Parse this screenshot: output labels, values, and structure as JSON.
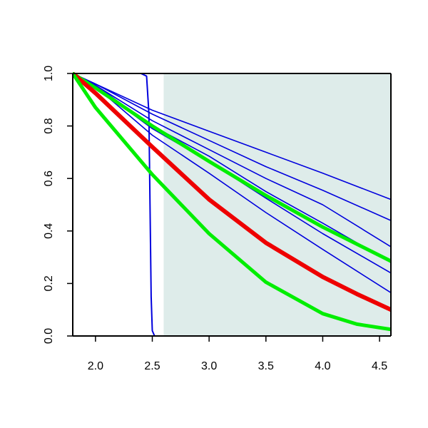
{
  "chart_data": {
    "type": "line",
    "title": "",
    "xlabel": "",
    "ylabel": "",
    "xlim": [
      1.8,
      4.6
    ],
    "ylim": [
      0.0,
      1.0
    ],
    "x_ticks": [
      2.0,
      2.5,
      3.0,
      3.5,
      4.0,
      4.5
    ],
    "x_tick_labels": [
      "2.0",
      "2.5",
      "3.0",
      "3.5",
      "4.0",
      "4.5"
    ],
    "y_ticks": [
      0.0,
      0.2,
      0.4,
      0.6,
      0.8,
      1.0
    ],
    "y_tick_labels": [
      "0.0",
      "0.2",
      "0.4",
      "0.6",
      "0.8",
      "1.0"
    ],
    "grid": false,
    "legend": "none",
    "shaded_region": {
      "x_start": 2.6,
      "x_end": 4.6,
      "color": "#deecea"
    },
    "colors": {
      "blue": "#0000dd",
      "green": "#00ee00",
      "red": "#ee0000",
      "axis": "#000000"
    },
    "series": [
      {
        "color": "#0000dd",
        "width": 1.6,
        "x": [
          1.8,
          2.0,
          2.5,
          3.0,
          3.5,
          4.0,
          4.6
        ],
        "values": [
          1.0,
          0.96,
          0.86,
          0.78,
          0.7,
          0.62,
          0.52
        ]
      },
      {
        "color": "#0000dd",
        "width": 1.6,
        "x": [
          1.8,
          2.0,
          2.5,
          3.0,
          3.5,
          4.0,
          4.6
        ],
        "values": [
          1.0,
          0.96,
          0.845,
          0.745,
          0.645,
          0.555,
          0.44
        ]
      },
      {
        "color": "#0000dd",
        "width": 1.6,
        "x": [
          1.8,
          2.0,
          2.5,
          3.0,
          3.5,
          4.0,
          4.6
        ],
        "values": [
          1.0,
          0.955,
          0.82,
          0.71,
          0.6,
          0.5,
          0.34
        ]
      },
      {
        "color": "#0000dd",
        "width": 1.6,
        "x": [
          1.8,
          2.0,
          2.5,
          3.0,
          3.5,
          4.0,
          4.6
        ],
        "values": [
          1.0,
          0.955,
          0.8,
          0.685,
          0.55,
          0.43,
          0.28
        ]
      },
      {
        "color": "#0000dd",
        "width": 1.6,
        "x": [
          1.8,
          2.0,
          2.5,
          3.0,
          3.5,
          4.0,
          4.6
        ],
        "values": [
          1.0,
          0.95,
          0.79,
          0.665,
          0.525,
          0.39,
          0.24
        ]
      },
      {
        "color": "#0000dd",
        "width": 1.6,
        "x": [
          1.8,
          2.0,
          2.5,
          3.0,
          3.5,
          4.0,
          4.6
        ],
        "values": [
          1.0,
          0.95,
          0.765,
          0.62,
          0.47,
          0.33,
          0.165
        ]
      },
      {
        "color": "#0000dd",
        "width": 2,
        "x": [
          1.8,
          2.0,
          2.4,
          2.45,
          2.47,
          2.48,
          2.49,
          2.5,
          2.52,
          3.0,
          4.6
        ],
        "values": [
          1.0,
          1.0,
          1.0,
          0.99,
          0.85,
          0.5,
          0.15,
          0.02,
          0.0,
          0.0,
          0.0
        ]
      },
      {
        "color": "#00ee00",
        "width": 5,
        "x": [
          1.8,
          2.0,
          2.5,
          3.0,
          3.5,
          4.0,
          4.6
        ],
        "values": [
          1.0,
          0.945,
          0.8,
          0.665,
          0.535,
          0.415,
          0.285
        ]
      },
      {
        "color": "#ee0000",
        "width": 6,
        "x": [
          1.8,
          2.0,
          2.5,
          3.0,
          3.5,
          4.0,
          4.3,
          4.6
        ],
        "values": [
          1.0,
          0.925,
          0.72,
          0.52,
          0.355,
          0.225,
          0.16,
          0.1
        ]
      },
      {
        "color": "#00ee00",
        "width": 5,
        "x": [
          1.8,
          2.0,
          2.5,
          3.0,
          3.5,
          4.0,
          4.3,
          4.6
        ],
        "values": [
          1.0,
          0.87,
          0.615,
          0.39,
          0.205,
          0.085,
          0.045,
          0.025
        ]
      }
    ]
  }
}
